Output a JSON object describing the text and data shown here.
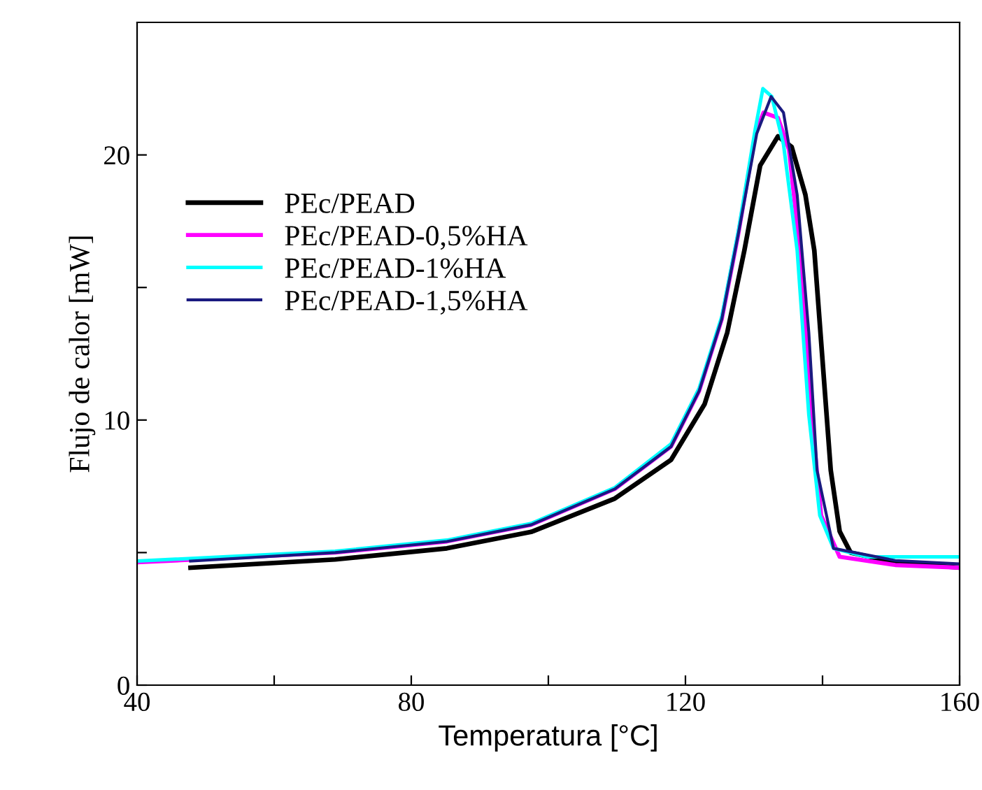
{
  "chart_data": {
    "type": "line",
    "xlabel": "Temperatura [°C]",
    "ylabel": "Flujo de calor [mW]",
    "xlim": [
      40,
      160
    ],
    "xticks": [
      40,
      {
        "value": 60,
        "label": null
      },
      80,
      {
        "value": 100,
        "label": null
      },
      120,
      {
        "value": 140,
        "label": null
      },
      160
    ],
    "ylim": [
      0,
      25
    ],
    "yticks": [
      0,
      {
        "value": 5,
        "label": null
      },
      10,
      {
        "value": 15,
        "label": null
      },
      20
    ],
    "grid": false,
    "legend": "center left",
    "line_style": "solid",
    "marker": "none",
    "series": [
      {
        "name": "PEc/PEAD",
        "color": "#000000",
        "x": [
          47.8,
          68.9,
          85.2,
          97.5,
          109.7,
          117.9,
          122.8,
          126.1,
          128.6,
          130.9,
          133.5,
          135.5,
          137.5,
          138.8,
          140,
          141.2,
          142.5,
          144.1,
          150.6,
          160
        ],
        "values": [
          4.43,
          4.74,
          5.16,
          5.78,
          7.04,
          8.5,
          10.6,
          13.3,
          16.4,
          19.6,
          20.7,
          20.3,
          18.5,
          16.4,
          12.25,
          8.1,
          5.8,
          5.0,
          4.63,
          4.43
        ]
      },
      {
        "name": "PEc/PEAD-0,5%HA",
        "color": "#ff00ff",
        "x": [
          40,
          68.9,
          85.2,
          97.5,
          109.7,
          117.9,
          122,
          125.3,
          127.7,
          130.2,
          131.4,
          133.5,
          135.1,
          136.7,
          138.4,
          139.8,
          142.5,
          150.6,
          160
        ],
        "values": [
          4.63,
          5.0,
          5.42,
          6.05,
          7.4,
          9.0,
          11.1,
          13.8,
          17.0,
          20.8,
          21.6,
          21.4,
          20.2,
          16.4,
          10.2,
          6.4,
          4.84,
          4.53,
          4.43
        ]
      },
      {
        "name": "PEc/PEAD-1%HA",
        "color": "#00ffff",
        "x": [
          40,
          68.9,
          85.2,
          97.5,
          109.7,
          117.9,
          122,
          125.3,
          127.7,
          130.2,
          131.3,
          132.6,
          134.3,
          136.3,
          138,
          139.6,
          141.6,
          146.5,
          160
        ],
        "values": [
          4.68,
          5.05,
          5.47,
          6.1,
          7.45,
          9.1,
          11.2,
          13.9,
          17.1,
          21.0,
          22.5,
          22.2,
          20.4,
          16.4,
          10.2,
          6.4,
          5.16,
          4.84,
          4.84
        ]
      },
      {
        "name": "PEc/PEAD-1,5%HA",
        "color": "#1a1a80",
        "x": [
          47.8,
          68.9,
          85.2,
          97.5,
          109.7,
          117.9,
          122,
          125.3,
          127.7,
          130.4,
          132.5,
          134.3,
          136.3,
          138,
          139.2,
          141.6,
          150.6,
          160
        ],
        "values": [
          4.68,
          5.0,
          5.42,
          6.05,
          7.4,
          9.0,
          11.1,
          13.8,
          17.0,
          20.8,
          22.2,
          21.6,
          18.5,
          13.3,
          8.1,
          5.16,
          4.7,
          4.57
        ]
      }
    ]
  }
}
